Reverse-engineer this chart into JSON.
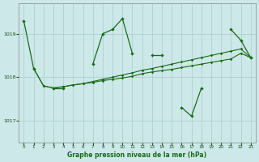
{
  "title": "Graphe pression niveau de la mer (hPa)",
  "background_color": "#cce8e8",
  "grid_color": "#aacccc",
  "line_color": "#1a6b1a",
  "xlim": [
    -0.5,
    23.5
  ],
  "ylim": [
    1016.5,
    1019.7
  ],
  "yticks": [
    1017,
    1018,
    1019
  ],
  "xticks": [
    0,
    1,
    2,
    3,
    4,
    5,
    6,
    7,
    8,
    9,
    10,
    11,
    12,
    13,
    14,
    15,
    16,
    17,
    18,
    19,
    20,
    21,
    22,
    23
  ],
  "series1_segments": [
    {
      "x": [
        0,
        1
      ],
      "y": [
        1019.3,
        1018.2
      ]
    },
    {
      "x": [
        3,
        4
      ],
      "y": [
        1017.75,
        1017.75
      ]
    },
    {
      "x": [
        7,
        8,
        9,
        10,
        11
      ],
      "y": [
        1018.3,
        1019.0,
        1019.1,
        1019.35,
        1018.55
      ]
    },
    {
      "x": [
        13,
        14
      ],
      "y": [
        1018.5,
        1018.5
      ]
    },
    {
      "x": [
        16,
        17,
        18
      ],
      "y": [
        1017.3,
        1017.1,
        1017.75
      ]
    },
    {
      "x": [
        21,
        22,
        23
      ],
      "y": [
        1019.1,
        1018.85,
        1018.45
      ]
    }
  ],
  "series2_x": [
    1,
    2,
    3,
    4,
    5,
    6,
    7,
    8,
    9,
    10,
    11,
    12,
    13,
    14,
    15,
    16,
    17,
    18,
    19,
    20,
    21,
    22,
    23
  ],
  "series2_y": [
    1018.2,
    1017.8,
    1017.75,
    1017.78,
    1017.82,
    1017.85,
    1017.88,
    1017.92,
    1017.95,
    1017.98,
    1018.02,
    1018.08,
    1018.12,
    1018.15,
    1018.18,
    1018.22,
    1018.26,
    1018.3,
    1018.34,
    1018.38,
    1018.42,
    1018.55,
    1018.45
  ],
  "series3_x": [
    1,
    2,
    3,
    4,
    5,
    6,
    7,
    8,
    9,
    10,
    11,
    12,
    13,
    14,
    15,
    16,
    17,
    18,
    19,
    20,
    21,
    22,
    23
  ],
  "series3_y": [
    1018.2,
    1017.8,
    1017.75,
    1017.78,
    1017.82,
    1017.85,
    1017.9,
    1017.95,
    1018.0,
    1018.05,
    1018.1,
    1018.16,
    1018.2,
    1018.25,
    1018.3,
    1018.35,
    1018.4,
    1018.45,
    1018.5,
    1018.55,
    1018.6,
    1018.65,
    1018.45
  ]
}
